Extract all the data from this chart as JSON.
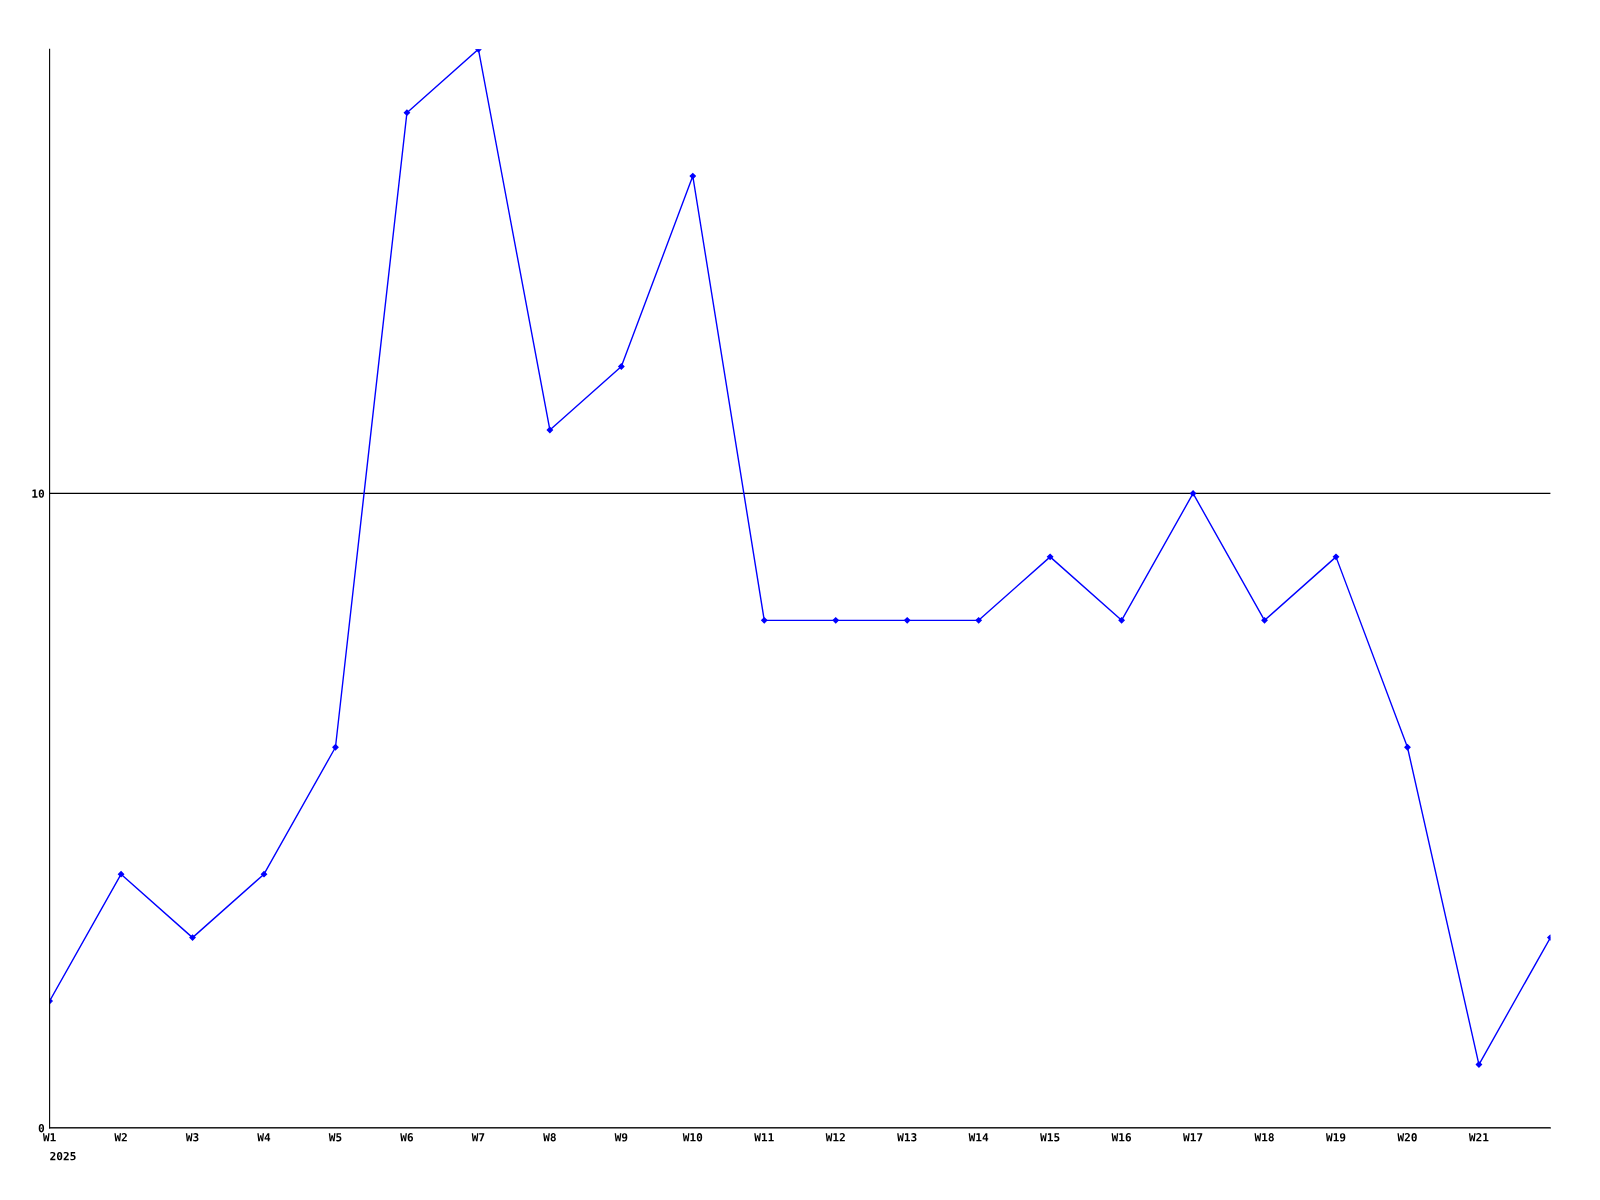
{
  "chart_data": {
    "type": "line",
    "categories": [
      "W1",
      "W2",
      "W3",
      "W4",
      "W5",
      "W6",
      "W7",
      "W8",
      "W9",
      "W10",
      "W11",
      "W12",
      "W13",
      "W14",
      "W15",
      "W16",
      "W17",
      "W18",
      "W19",
      "W20",
      "W21",
      null
    ],
    "series": [
      {
        "color": "#0000ff",
        "values": [
          2,
          4,
          3,
          4,
          6,
          16,
          17,
          11,
          12,
          15,
          8,
          8,
          8,
          8,
          9,
          8,
          10,
          8,
          9,
          6,
          1,
          3
        ]
      }
    ],
    "ylim": [
      0,
      17
    ],
    "yticks": [
      0,
      10
    ],
    "grid": "y",
    "marker": "diamond",
    "line_style": "solid",
    "annotations": [
      "2025"
    ]
  }
}
